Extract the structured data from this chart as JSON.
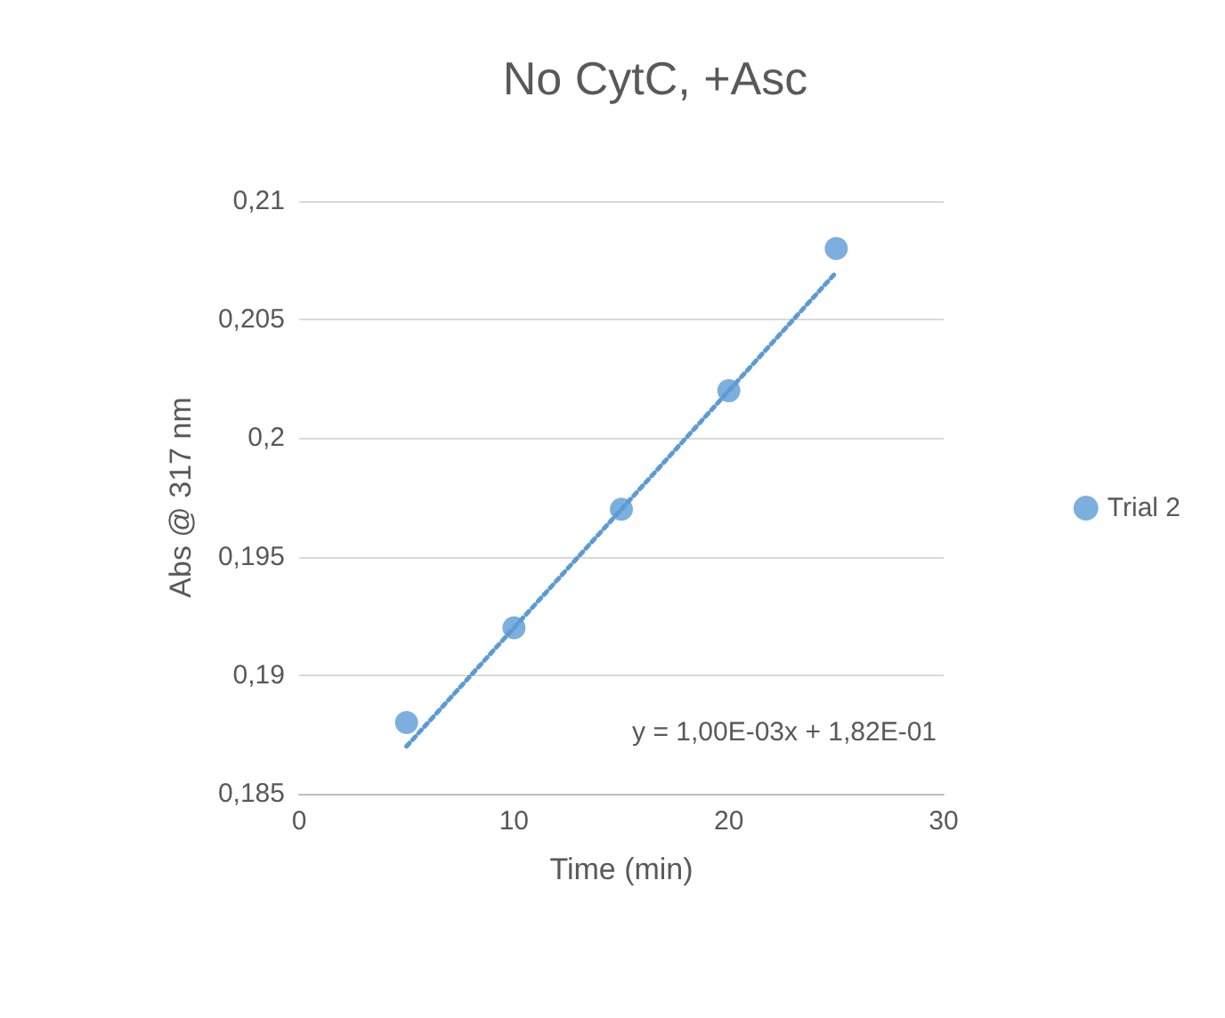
{
  "chart_data": {
    "type": "scatter",
    "title": "No CytC, +Asc",
    "xlabel": "Time (min)",
    "ylabel": "Abs @ 317 nm",
    "x": [
      5,
      10,
      15,
      20,
      25
    ],
    "series": [
      {
        "name": "Trial 2",
        "color": "#5b9bd5",
        "values": [
          0.188,
          0.192,
          0.197,
          0.202,
          0.208
        ]
      },
      {
        "type": "line",
        "color": "#5b9bd5",
        "line_style": "dotted",
        "marker": "none",
        "x": [
          5,
          25
        ],
        "values": [
          0.187,
          0.207
        ]
      }
    ],
    "xlim": [
      0,
      30
    ],
    "xticks": [
      0,
      10,
      20,
      30
    ],
    "ylim": [
      0.185,
      0.21
    ],
    "yticks": [
      {
        "value": 0.185,
        "label": "0,185"
      },
      {
        "value": 0.19,
        "label": "0,19"
      },
      {
        "value": 0.195,
        "label": "0,195"
      },
      {
        "value": 0.2,
        "label": "0,2"
      },
      {
        "value": 0.205,
        "label": "0,205"
      },
      {
        "value": 0.21,
        "label": "0,21"
      }
    ],
    "annotations": [
      "y = 1,00E-03x + 1,82E-01"
    ],
    "grid": "y",
    "legend": "right",
    "marker": "circle"
  }
}
